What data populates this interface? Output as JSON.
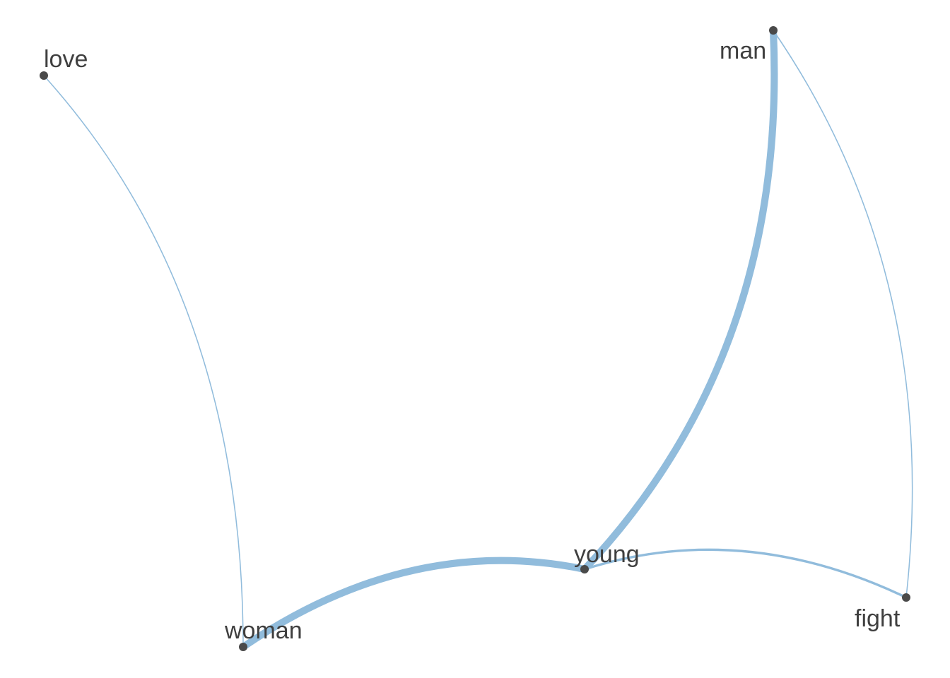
{
  "graph": {
    "colors": {
      "edge": "#91bcdc",
      "node": "#4a4a4a",
      "label": "#3f3f3f",
      "background": "#ffffff"
    },
    "nodes": [
      {
        "id": "love",
        "label": "love"
      },
      {
        "id": "man",
        "label": "man"
      },
      {
        "id": "young",
        "label": "young"
      },
      {
        "id": "woman",
        "label": "woman"
      },
      {
        "id": "fight",
        "label": "fight"
      }
    ],
    "edges": [
      {
        "source": "love",
        "target": "woman",
        "weight": 1
      },
      {
        "source": "man",
        "target": "fight",
        "weight": 1
      },
      {
        "source": "young",
        "target": "fight",
        "weight": 3
      },
      {
        "source": "woman",
        "target": "young",
        "weight": 10
      },
      {
        "source": "man",
        "target": "young",
        "weight": 10
      }
    ]
  }
}
